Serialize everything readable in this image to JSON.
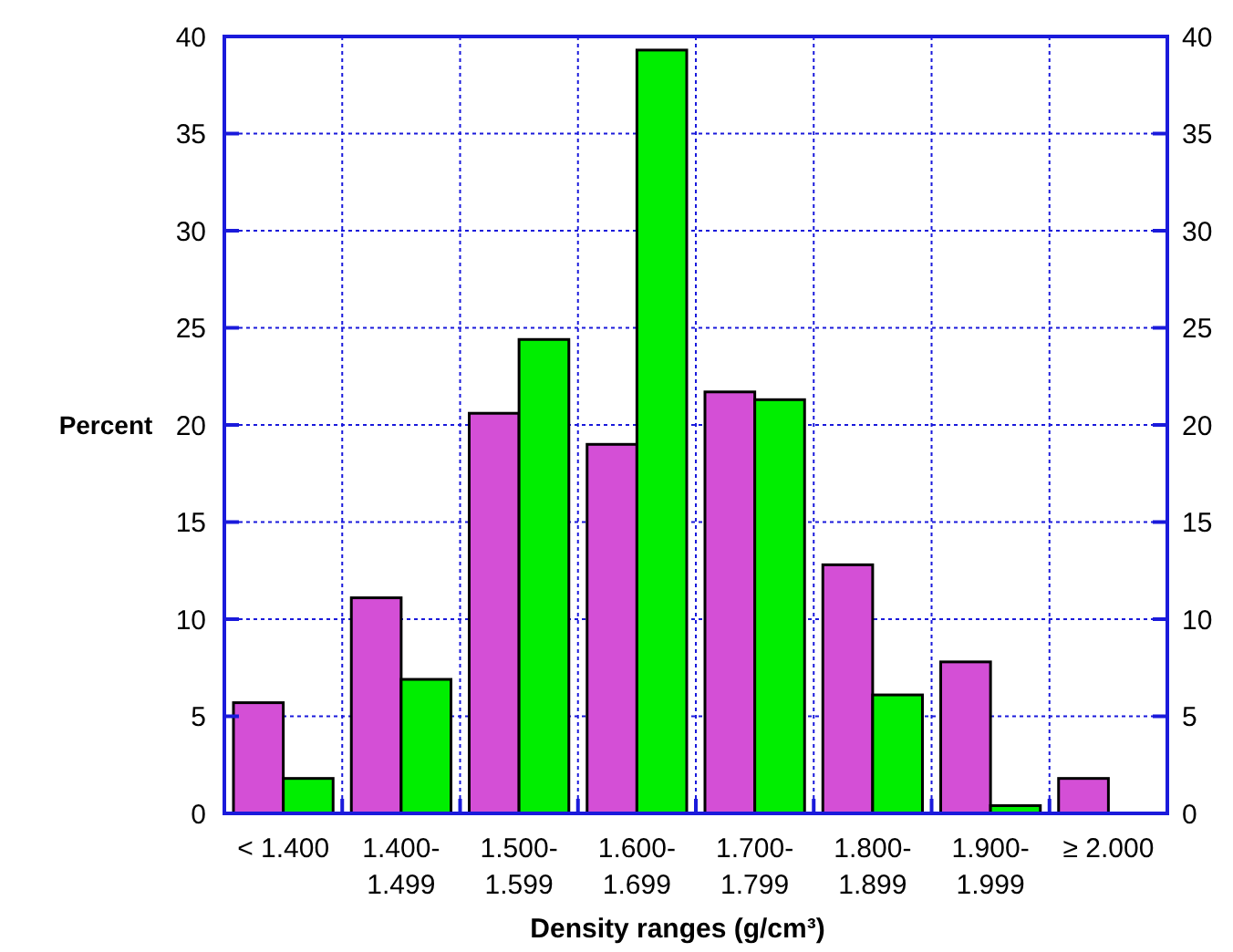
{
  "chart_data": {
    "type": "bar",
    "xlabel": "Density ranges (g/cm³)",
    "ylabel": "Percent",
    "categories": [
      "< 1.400",
      "1.400-\n1.499",
      "1.500-\n1.599",
      "1.600-\n1.699",
      "1.700-\n1.799",
      "1.800-\n1.899",
      "1.900-\n1.999",
      "≥ 2.000"
    ],
    "series": [
      {
        "color": "#d44fd6",
        "values": [
          5.7,
          11.1,
          20.6,
          19.0,
          21.7,
          12.8,
          7.8,
          1.8
        ]
      },
      {
        "color": "#00ee00",
        "values": [
          1.8,
          6.9,
          24.4,
          39.3,
          21.3,
          6.1,
          0.4,
          null
        ]
      }
    ],
    "ylim": [
      0,
      40
    ],
    "yticks": [
      0,
      5,
      10,
      15,
      20,
      25,
      30,
      35,
      40
    ],
    "y2lim": [
      0,
      40
    ],
    "y2ticks": [
      0,
      5,
      10,
      15,
      20,
      25,
      30,
      35,
      40
    ],
    "grid": true
  }
}
